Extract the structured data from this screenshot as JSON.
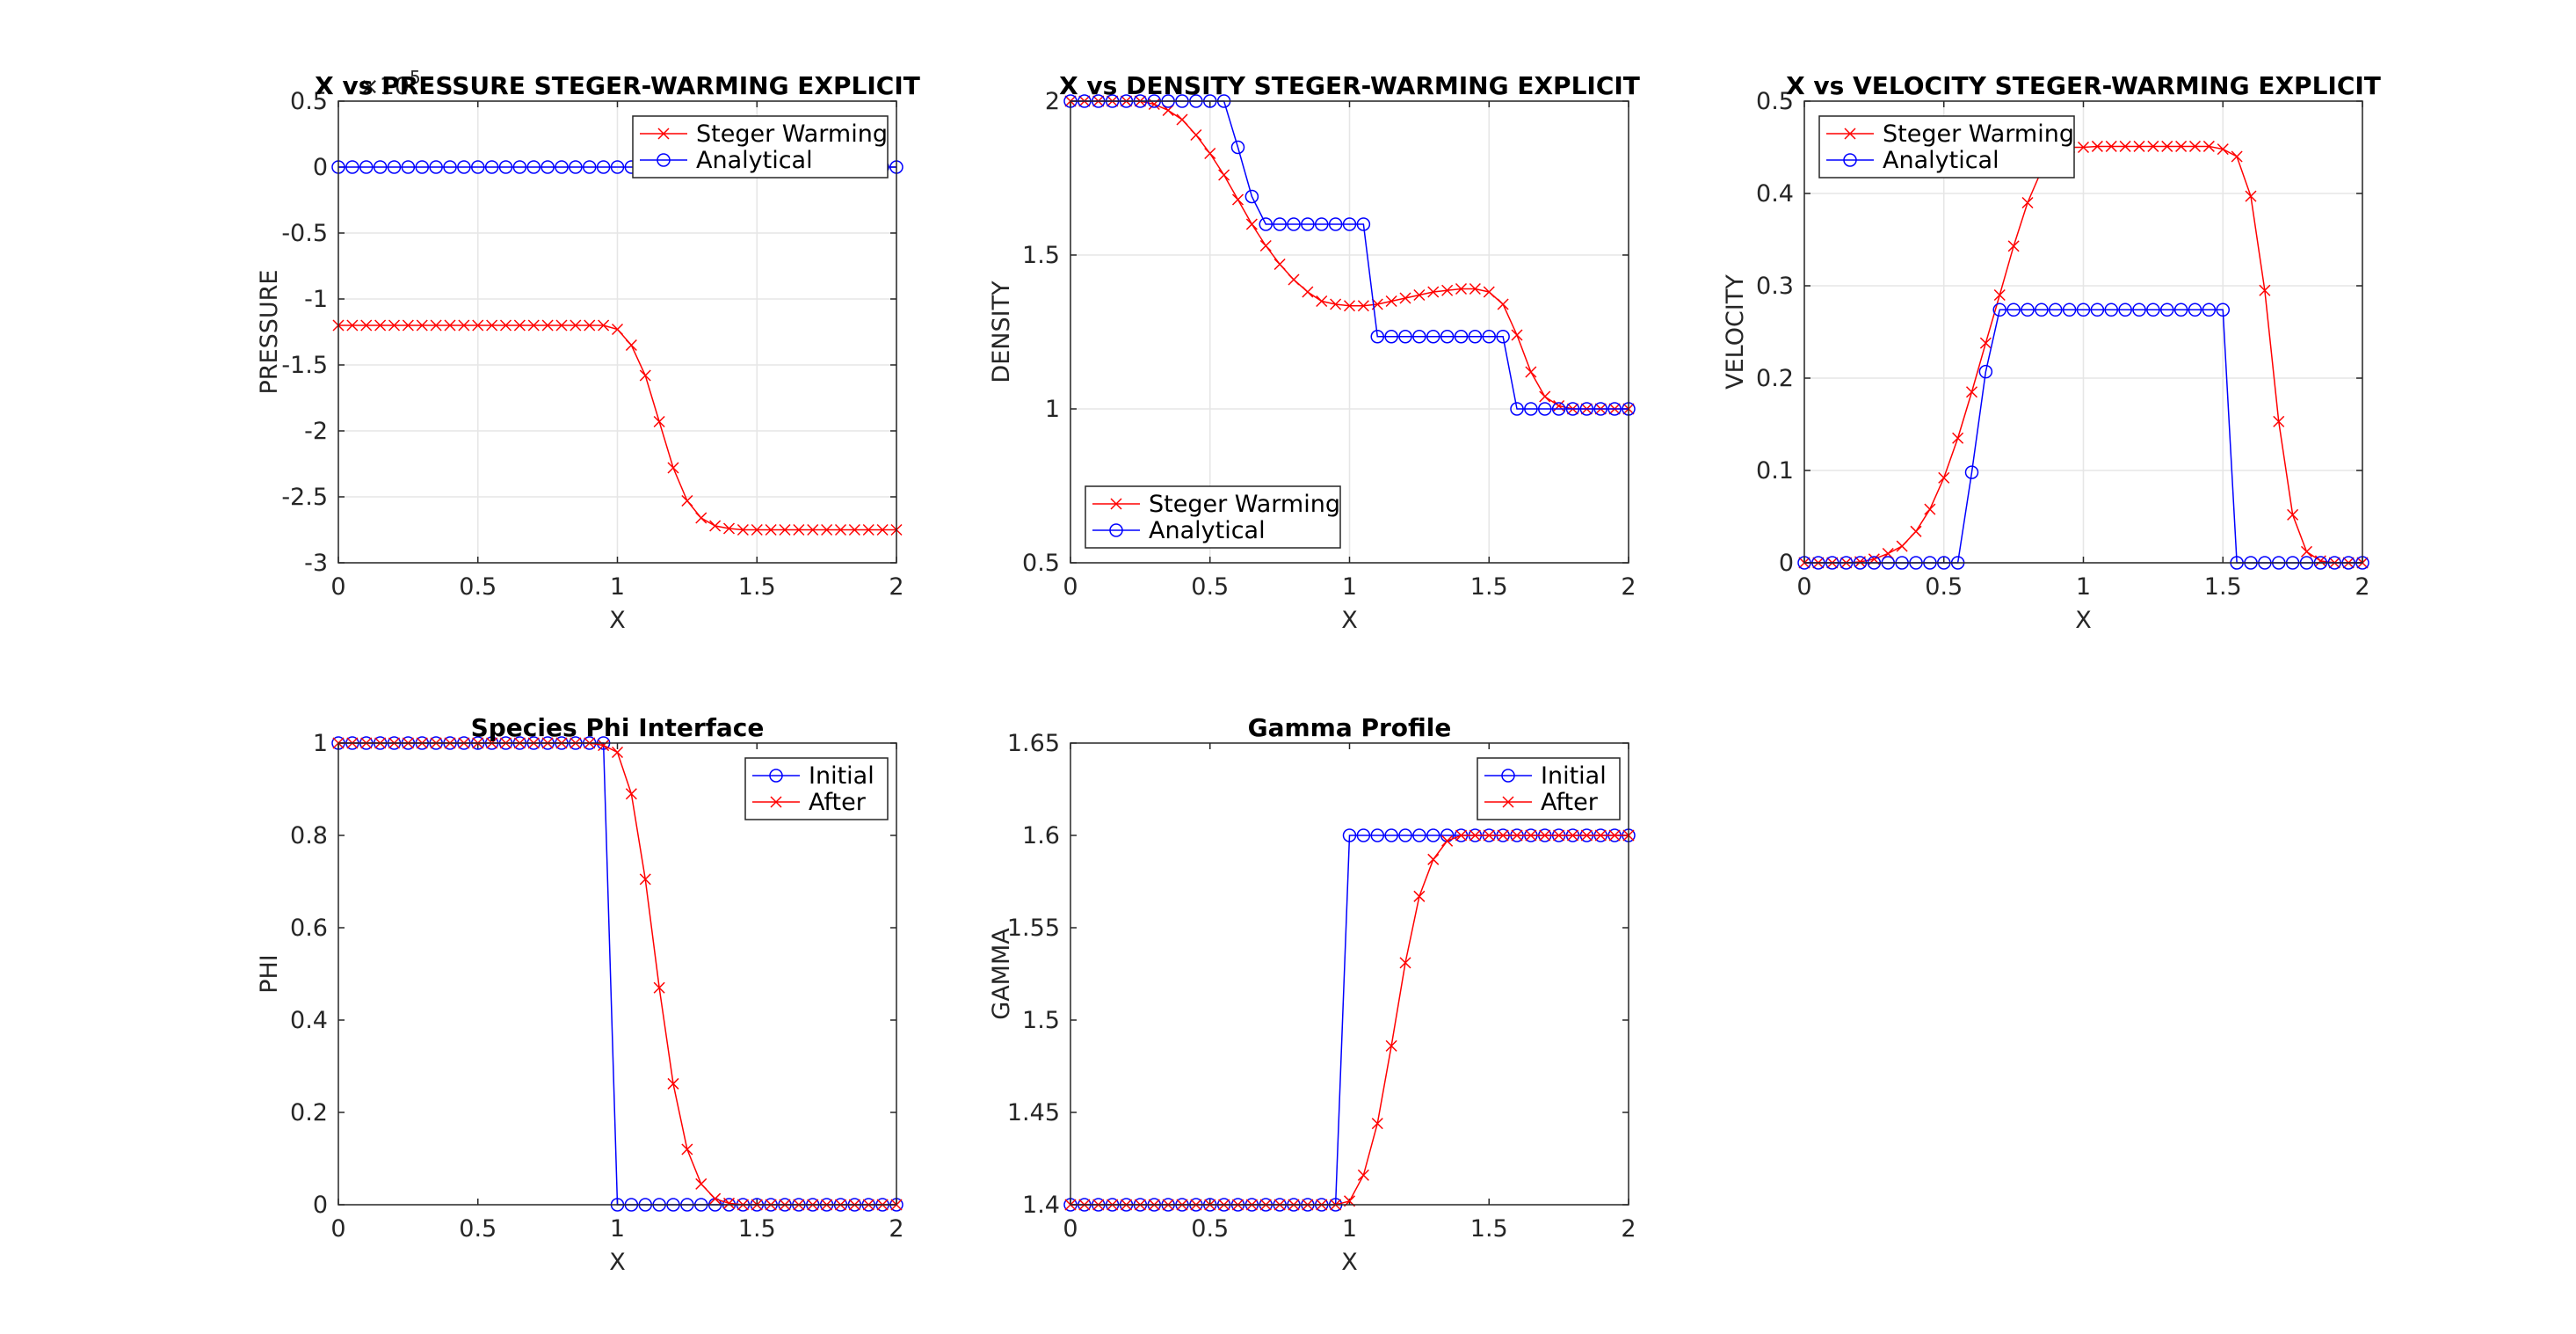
{
  "chart_data": [
    {
      "type": "line",
      "title": "X vs PRESSURE STEGER-WARMING EXPLICIT",
      "xlabel": "X",
      "ylabel": "PRESSURE",
      "exponent_label": "×10",
      "exponent_power": "5",
      "xlim": [
        0,
        2
      ],
      "ylim": [
        -3,
        0.5
      ],
      "xticks": [
        "0",
        "0.5",
        "1",
        "1.5",
        "2"
      ],
      "yticks": [
        "-3",
        "-2.5",
        "-2",
        "-1.5",
        "-1",
        "-0.5",
        "0",
        "0.5"
      ],
      "grid": true,
      "legend_position": "top-right",
      "series": [
        {
          "name": "Steger Warming",
          "color": "#ff0000",
          "marker": "x",
          "x": [
            0,
            0.05,
            0.1,
            0.15,
            0.2,
            0.25,
            0.3,
            0.35,
            0.4,
            0.45,
            0.5,
            0.55,
            0.6,
            0.65,
            0.7,
            0.75,
            0.8,
            0.85,
            0.9,
            0.95,
            1.0,
            1.05,
            1.1,
            1.15,
            1.2,
            1.25,
            1.3,
            1.35,
            1.4,
            1.45,
            1.5,
            1.55,
            1.6,
            1.65,
            1.7,
            1.75,
            1.8,
            1.85,
            1.9,
            1.95,
            2.0
          ],
          "y": [
            -1.2,
            -1.2,
            -1.2,
            -1.2,
            -1.2,
            -1.2,
            -1.2,
            -1.2,
            -1.2,
            -1.2,
            -1.2,
            -1.2,
            -1.2,
            -1.2,
            -1.2,
            -1.2,
            -1.2,
            -1.2,
            -1.2,
            -1.2,
            -1.23,
            -1.35,
            -1.58,
            -1.93,
            -2.28,
            -2.53,
            -2.66,
            -2.72,
            -2.74,
            -2.75,
            -2.75,
            -2.75,
            -2.75,
            -2.75,
            -2.75,
            -2.75,
            -2.75,
            -2.75,
            -2.75,
            -2.75,
            -2.75
          ]
        },
        {
          "name": "Analytical",
          "color": "#0000ff",
          "marker": "o",
          "x": [
            0,
            0.05,
            0.1,
            0.15,
            0.2,
            0.25,
            0.3,
            0.35,
            0.4,
            0.45,
            0.5,
            0.55,
            0.6,
            0.65,
            0.7,
            0.75,
            0.8,
            0.85,
            0.9,
            0.95,
            1.0,
            1.05,
            1.1,
            1.15,
            1.2,
            1.25,
            1.3,
            1.35,
            1.4,
            1.45,
            1.5,
            1.55,
            1.6,
            1.65,
            1.7,
            1.75,
            1.8,
            1.85,
            1.9,
            1.95,
            2.0
          ],
          "y": [
            0,
            0,
            0,
            0,
            0,
            0,
            0,
            0,
            0,
            0,
            0,
            0,
            0,
            0,
            0,
            0,
            0,
            0,
            0,
            0,
            0,
            0,
            0,
            0,
            0,
            0,
            0,
            0,
            0,
            0,
            0,
            0,
            0,
            0,
            0,
            0,
            0,
            0,
            0,
            0,
            0
          ]
        }
      ]
    },
    {
      "type": "line",
      "title": "X vs DENSITY STEGER-WARMING EXPLICIT",
      "xlabel": "X",
      "ylabel": "DENSITY",
      "xlim": [
        0,
        2
      ],
      "ylim": [
        0.5,
        2
      ],
      "xticks": [
        "0",
        "0.5",
        "1",
        "1.5",
        "2"
      ],
      "yticks": [
        "0.5",
        "1",
        "1.5",
        "2"
      ],
      "grid": true,
      "legend_position": "bottom-left",
      "series": [
        {
          "name": "Steger Warming",
          "color": "#ff0000",
          "marker": "x",
          "x": [
            0,
            0.05,
            0.1,
            0.15,
            0.2,
            0.25,
            0.3,
            0.35,
            0.4,
            0.45,
            0.5,
            0.55,
            0.6,
            0.65,
            0.7,
            0.75,
            0.8,
            0.85,
            0.9,
            0.95,
            1.0,
            1.05,
            1.1,
            1.15,
            1.2,
            1.25,
            1.3,
            1.35,
            1.4,
            1.45,
            1.5,
            1.55,
            1.6,
            1.65,
            1.7,
            1.75,
            1.8,
            1.85,
            1.9,
            1.95,
            2.0
          ],
          "y": [
            2.0,
            2.0,
            2.0,
            2.0,
            2.0,
            2.0,
            1.99,
            1.97,
            1.94,
            1.89,
            1.83,
            1.76,
            1.68,
            1.6,
            1.53,
            1.47,
            1.42,
            1.38,
            1.35,
            1.34,
            1.335,
            1.335,
            1.34,
            1.35,
            1.36,
            1.37,
            1.38,
            1.385,
            1.39,
            1.39,
            1.38,
            1.34,
            1.24,
            1.12,
            1.04,
            1.01,
            1.0,
            1.0,
            1.0,
            1.0,
            1.0
          ]
        },
        {
          "name": "Analytical",
          "color": "#0000ff",
          "marker": "o",
          "x": [
            0,
            0.05,
            0.1,
            0.15,
            0.2,
            0.25,
            0.3,
            0.35,
            0.4,
            0.45,
            0.5,
            0.55,
            0.6,
            0.65,
            0.7,
            0.75,
            0.8,
            0.85,
            0.9,
            0.95,
            1.0,
            1.05,
            1.1,
            1.15,
            1.2,
            1.25,
            1.3,
            1.35,
            1.4,
            1.45,
            1.5,
            1.55,
            1.6,
            1.65,
            1.7,
            1.75,
            1.8,
            1.85,
            1.9,
            1.95,
            2.0
          ],
          "y": [
            2.0,
            2.0,
            2.0,
            2.0,
            2.0,
            2.0,
            2.0,
            2.0,
            2.0,
            2.0,
            2.0,
            2.0,
            1.85,
            1.69,
            1.6,
            1.6,
            1.6,
            1.6,
            1.6,
            1.6,
            1.6,
            1.6,
            1.235,
            1.235,
            1.235,
            1.235,
            1.235,
            1.235,
            1.235,
            1.235,
            1.235,
            1.235,
            1.0,
            1.0,
            1.0,
            1.0,
            1.0,
            1.0,
            1.0,
            1.0,
            1.0
          ]
        }
      ]
    },
    {
      "type": "line",
      "title": "X vs VELOCITY STEGER-WARMING EXPLICIT",
      "xlabel": "X",
      "ylabel": "VELOCITY",
      "xlim": [
        0,
        2
      ],
      "ylim": [
        0,
        0.5
      ],
      "xticks": [
        "0",
        "0.5",
        "1",
        "1.5",
        "2"
      ],
      "yticks": [
        "0",
        "0.1",
        "0.2",
        "0.3",
        "0.4",
        "0.5"
      ],
      "grid": true,
      "legend_position": "top-left",
      "series": [
        {
          "name": "Steger Warming",
          "color": "#ff0000",
          "marker": "x",
          "x": [
            0,
            0.05,
            0.1,
            0.15,
            0.2,
            0.25,
            0.3,
            0.35,
            0.4,
            0.45,
            0.5,
            0.55,
            0.6,
            0.65,
            0.7,
            0.75,
            0.8,
            0.85,
            0.9,
            0.95,
            1.0,
            1.05,
            1.1,
            1.15,
            1.2,
            1.25,
            1.3,
            1.35,
            1.4,
            1.45,
            1.5,
            1.55,
            1.6,
            1.65,
            1.7,
            1.75,
            1.8,
            1.85,
            1.9,
            1.95,
            2.0
          ],
          "y": [
            0,
            0,
            0,
            0,
            0.001,
            0.004,
            0.01,
            0.018,
            0.034,
            0.058,
            0.092,
            0.135,
            0.185,
            0.238,
            0.29,
            0.343,
            0.39,
            0.425,
            0.445,
            0.45,
            0.45,
            0.451,
            0.451,
            0.451,
            0.451,
            0.451,
            0.451,
            0.451,
            0.451,
            0.451,
            0.448,
            0.44,
            0.397,
            0.295,
            0.153,
            0.052,
            0.012,
            0.002,
            0,
            0,
            0
          ]
        },
        {
          "name": "Analytical",
          "color": "#0000ff",
          "marker": "o",
          "x": [
            0,
            0.05,
            0.1,
            0.15,
            0.2,
            0.25,
            0.3,
            0.35,
            0.4,
            0.45,
            0.5,
            0.55,
            0.6,
            0.65,
            0.7,
            0.75,
            0.8,
            0.85,
            0.9,
            0.95,
            1.0,
            1.05,
            1.1,
            1.15,
            1.2,
            1.25,
            1.3,
            1.35,
            1.4,
            1.45,
            1.5,
            1.55,
            1.6,
            1.65,
            1.7,
            1.75,
            1.8,
            1.85,
            1.9,
            1.95,
            2.0
          ],
          "y": [
            0,
            0,
            0,
            0,
            0,
            0,
            0,
            0,
            0,
            0,
            0,
            0,
            0.098,
            0.207,
            0.274,
            0.274,
            0.274,
            0.274,
            0.274,
            0.274,
            0.274,
            0.274,
            0.274,
            0.274,
            0.274,
            0.274,
            0.274,
            0.274,
            0.274,
            0.274,
            0.274,
            0,
            0,
            0,
            0,
            0,
            0,
            0,
            0,
            0,
            0
          ]
        }
      ]
    },
    {
      "type": "line",
      "title": "Species Phi Interface",
      "xlabel": "X",
      "ylabel": "PHI",
      "xlim": [
        0,
        2
      ],
      "ylim": [
        0,
        1
      ],
      "xticks": [
        "0",
        "0.5",
        "1",
        "1.5",
        "2"
      ],
      "yticks": [
        "0",
        "0.2",
        "0.4",
        "0.6",
        "0.8",
        "1"
      ],
      "grid": false,
      "legend_position": "top-right",
      "series": [
        {
          "name": "Initial",
          "color": "#0000ff",
          "marker": "o",
          "x": [
            0,
            0.05,
            0.1,
            0.15,
            0.2,
            0.25,
            0.3,
            0.35,
            0.4,
            0.45,
            0.5,
            0.55,
            0.6,
            0.65,
            0.7,
            0.75,
            0.8,
            0.85,
            0.9,
            0.95,
            1.0,
            1.05,
            1.1,
            1.15,
            1.2,
            1.25,
            1.3,
            1.35,
            1.4,
            1.45,
            1.5,
            1.55,
            1.6,
            1.65,
            1.7,
            1.75,
            1.8,
            1.85,
            1.9,
            1.95,
            2.0
          ],
          "y": [
            1,
            1,
            1,
            1,
            1,
            1,
            1,
            1,
            1,
            1,
            1,
            1,
            1,
            1,
            1,
            1,
            1,
            1,
            1,
            1,
            0,
            0,
            0,
            0,
            0,
            0,
            0,
            0,
            0,
            0,
            0,
            0,
            0,
            0,
            0,
            0,
            0,
            0,
            0,
            0,
            0
          ]
        },
        {
          "name": "After",
          "color": "#ff0000",
          "marker": "x",
          "x": [
            0,
            0.05,
            0.1,
            0.15,
            0.2,
            0.25,
            0.3,
            0.35,
            0.4,
            0.45,
            0.5,
            0.55,
            0.6,
            0.65,
            0.7,
            0.75,
            0.8,
            0.85,
            0.9,
            0.95,
            1.0,
            1.05,
            1.1,
            1.15,
            1.2,
            1.25,
            1.3,
            1.35,
            1.4,
            1.45,
            1.5,
            1.55,
            1.6,
            1.65,
            1.7,
            1.75,
            1.8,
            1.85,
            1.9,
            1.95,
            2.0
          ],
          "y": [
            1,
            1,
            1,
            1,
            1,
            1,
            1,
            1,
            1,
            1,
            1,
            1,
            1,
            1,
            1,
            1,
            1,
            1,
            1,
            0.995,
            0.98,
            0.89,
            0.705,
            0.47,
            0.262,
            0.12,
            0.045,
            0.013,
            0.003,
            0,
            0,
            0,
            0,
            0,
            0,
            0,
            0,
            0,
            0,
            0,
            0
          ]
        }
      ]
    },
    {
      "type": "line",
      "title": "Gamma Profile",
      "xlabel": "X",
      "ylabel": "GAMMA",
      "xlim": [
        0,
        2
      ],
      "ylim": [
        1.4,
        1.65
      ],
      "xticks": [
        "0",
        "0.5",
        "1",
        "1.5",
        "2"
      ],
      "yticks": [
        "1.4",
        "1.45",
        "1.5",
        "1.55",
        "1.6",
        "1.65"
      ],
      "grid": false,
      "legend_position": "top-right",
      "series": [
        {
          "name": "Initial",
          "color": "#0000ff",
          "marker": "o",
          "x": [
            0,
            0.05,
            0.1,
            0.15,
            0.2,
            0.25,
            0.3,
            0.35,
            0.4,
            0.45,
            0.5,
            0.55,
            0.6,
            0.65,
            0.7,
            0.75,
            0.8,
            0.85,
            0.9,
            0.95,
            1.0,
            1.05,
            1.1,
            1.15,
            1.2,
            1.25,
            1.3,
            1.35,
            1.4,
            1.45,
            1.5,
            1.55,
            1.6,
            1.65,
            1.7,
            1.75,
            1.8,
            1.85,
            1.9,
            1.95,
            2.0
          ],
          "y": [
            1.4,
            1.4,
            1.4,
            1.4,
            1.4,
            1.4,
            1.4,
            1.4,
            1.4,
            1.4,
            1.4,
            1.4,
            1.4,
            1.4,
            1.4,
            1.4,
            1.4,
            1.4,
            1.4,
            1.4,
            1.6,
            1.6,
            1.6,
            1.6,
            1.6,
            1.6,
            1.6,
            1.6,
            1.6,
            1.6,
            1.6,
            1.6,
            1.6,
            1.6,
            1.6,
            1.6,
            1.6,
            1.6,
            1.6,
            1.6,
            1.6
          ]
        },
        {
          "name": "After",
          "color": "#ff0000",
          "marker": "x",
          "x": [
            0,
            0.05,
            0.1,
            0.15,
            0.2,
            0.25,
            0.3,
            0.35,
            0.4,
            0.45,
            0.5,
            0.55,
            0.6,
            0.65,
            0.7,
            0.75,
            0.8,
            0.85,
            0.9,
            0.95,
            1.0,
            1.05,
            1.1,
            1.15,
            1.2,
            1.25,
            1.3,
            1.35,
            1.4,
            1.45,
            1.5,
            1.55,
            1.6,
            1.65,
            1.7,
            1.75,
            1.8,
            1.85,
            1.9,
            1.95,
            2.0
          ],
          "y": [
            1.4,
            1.4,
            1.4,
            1.4,
            1.4,
            1.4,
            1.4,
            1.4,
            1.4,
            1.4,
            1.4,
            1.4,
            1.4,
            1.4,
            1.4,
            1.4,
            1.4,
            1.4,
            1.4,
            1.4,
            1.402,
            1.416,
            1.444,
            1.486,
            1.531,
            1.567,
            1.587,
            1.597,
            1.6,
            1.6,
            1.6,
            1.6,
            1.6,
            1.6,
            1.6,
            1.6,
            1.6,
            1.6,
            1.6,
            1.6,
            1.6
          ]
        }
      ]
    }
  ]
}
